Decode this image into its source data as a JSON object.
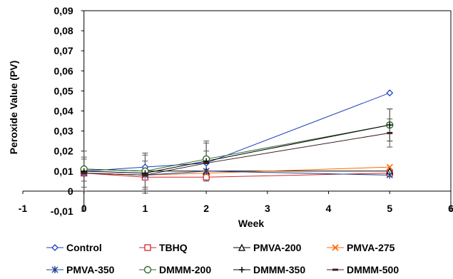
{
  "chart_data": {
    "type": "line",
    "title": "",
    "xlabel": "Week",
    "ylabel": "Peroxide Value (PV)",
    "xlim": [
      -1,
      6
    ],
    "ylim": [
      -0.01,
      0.09
    ],
    "x_ticks": [
      "-1",
      "0",
      "1",
      "2",
      "3",
      "4",
      "5",
      "6"
    ],
    "y_ticks": [
      "-0,01",
      "0",
      "0,01",
      "0,02",
      "0,03",
      "0,04",
      "0,05",
      "0,06",
      "0,07",
      "0,08",
      "0,09"
    ],
    "grid": false,
    "legend_position": "bottom",
    "x": [
      0,
      1,
      2,
      5
    ],
    "series": [
      {
        "name": "Control",
        "color": "#1f3fbf",
        "marker": "diamond",
        "values": [
          0.01,
          0.012,
          0.014,
          0.049
        ],
        "error": [
          0,
          0,
          0,
          0
        ]
      },
      {
        "name": "TBHQ",
        "color": "#d62728",
        "marker": "square",
        "values": [
          0.009,
          0.007,
          0.007,
          0.009
        ],
        "error": [
          0,
          0,
          0,
          0
        ]
      },
      {
        "name": "PMVA-200",
        "color": "#000000",
        "marker": "triangle",
        "values": [
          0.011,
          0.01,
          0.01,
          0.01
        ],
        "error": [
          0,
          0,
          0,
          0
        ]
      },
      {
        "name": "PMVA-275",
        "color": "#ff6600",
        "marker": "x",
        "values": [
          0.009,
          0.008,
          0.009,
          0.012
        ],
        "error": [
          0,
          0,
          0,
          0
        ]
      },
      {
        "name": "PMVA-350",
        "color": "#1f3f8f",
        "marker": "star",
        "values": [
          0.009,
          0.008,
          0.01,
          0.008
        ],
        "error": [
          0,
          0,
          0,
          0
        ]
      },
      {
        "name": "DMMM-200",
        "color": "#2e6b2e",
        "marker": "circle",
        "values": [
          0.011,
          0.01,
          0.016,
          0.033
        ],
        "error": [
          0.006,
          0.008,
          0.008,
          0.008
        ]
      },
      {
        "name": "DMMM-350",
        "color": "#000000",
        "marker": "plus",
        "values": [
          0.01,
          0.009,
          0.015,
          0.033
        ],
        "error": [
          0.01,
          0.01,
          0.01,
          0.008
        ]
      },
      {
        "name": "DMMM-500",
        "color": "#3d1f1f",
        "marker": "dash",
        "values": [
          0.009,
          0.008,
          0.014,
          0.029
        ],
        "error": [
          0.007,
          0.007,
          0.006,
          0.007
        ]
      }
    ]
  }
}
